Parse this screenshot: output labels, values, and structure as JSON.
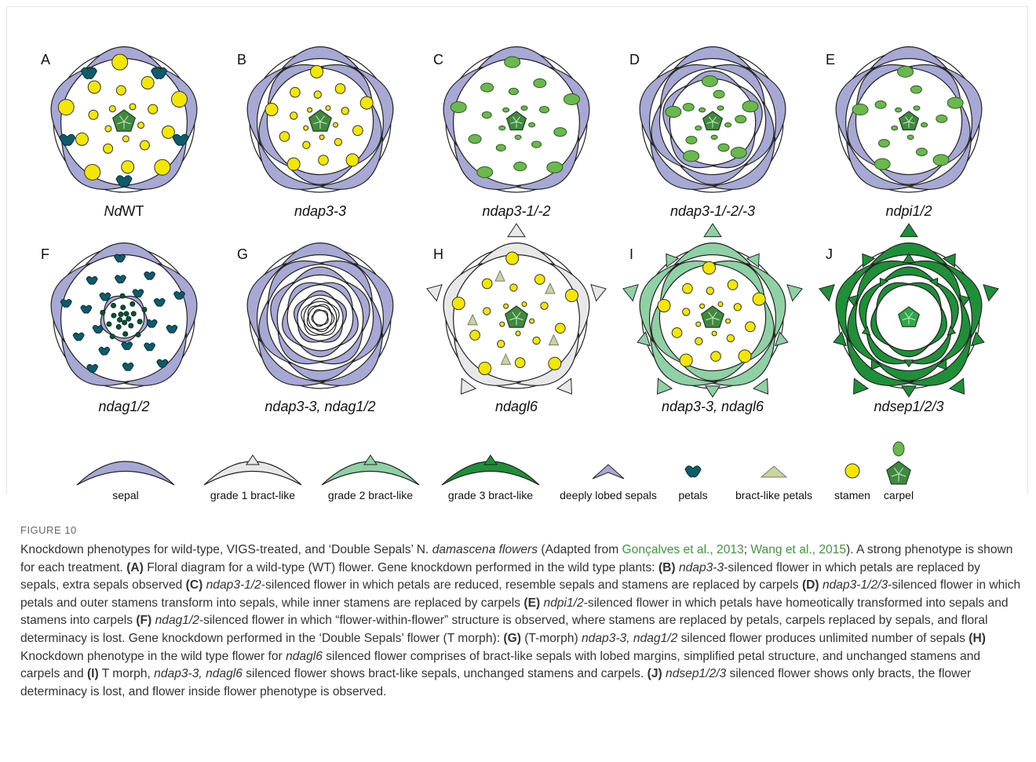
{
  "figure": {
    "panels": [
      {
        "letter": "A",
        "label": [
          {
            "text": "Nd",
            "style": "italic"
          },
          {
            "text": "WT",
            "style": "normal"
          }
        ]
      },
      {
        "letter": "B",
        "label": [
          {
            "text": "ndap3-3",
            "style": "italic"
          }
        ]
      },
      {
        "letter": "C",
        "label": [
          {
            "text": "ndap3-1/-2",
            "style": "italic"
          }
        ]
      },
      {
        "letter": "D",
        "label": [
          {
            "text": "ndap3-1/-2/-3",
            "style": "italic"
          }
        ]
      },
      {
        "letter": "E",
        "label": [
          {
            "text": "ndpi1/2",
            "style": "italic"
          }
        ]
      },
      {
        "letter": "F",
        "label": [
          {
            "text": "ndag1/2",
            "style": "italic"
          }
        ]
      },
      {
        "letter": "G",
        "label": [
          {
            "text": "ndap3-3, ndag1/2",
            "style": "italic"
          }
        ]
      },
      {
        "letter": "H",
        "label": [
          {
            "text": "ndagl6",
            "style": "italic"
          }
        ]
      },
      {
        "letter": "I",
        "label": [
          {
            "text": "ndap3-3, ndagl6",
            "style": "italic"
          }
        ]
      },
      {
        "letter": "J",
        "label": [
          {
            "text": "ndsep1/2/3",
            "style": "italic"
          }
        ]
      }
    ],
    "legend": [
      "sepal",
      "grade 1 bract-like",
      "grade 2 bract-like",
      "grade 3 bract-like",
      "deeply lobed sepals",
      "petals",
      "bract-like petals",
      "stamen",
      "carpel"
    ],
    "label": "FIGURE 10",
    "caption": [
      {
        "text": "Knockdown phenotypes for wild-type, VIGS-treated, and ‘Double Sepals’ N. ",
        "style": "normal"
      },
      {
        "text": "damascena flowers",
        "style": "italic"
      },
      {
        "text": " (Adapted from ",
        "style": "normal"
      },
      {
        "text": "Gonçalves et al., 2013",
        "style": "link"
      },
      {
        "text": "; ",
        "style": "normal"
      },
      {
        "text": "Wang et al., 2015",
        "style": "link"
      },
      {
        "text": "). A strong phenotype is shown for each treatment. ",
        "style": "normal"
      },
      {
        "text": "(A)",
        "style": "bold"
      },
      {
        "text": " Floral diagram for a wild-type (WT) flower. Gene knockdown performed in the wild type plants: ",
        "style": "normal"
      },
      {
        "text": "(B) ",
        "style": "bold"
      },
      {
        "text": "ndap3-3",
        "style": "italic"
      },
      {
        "text": "-silenced flower in which petals are replaced by sepals, extra sepals observed ",
        "style": "normal"
      },
      {
        "text": "(C) ",
        "style": "bold"
      },
      {
        "text": "ndap3-1/2",
        "style": "italic"
      },
      {
        "text": "-silenced flower in which petals are reduced, resemble sepals and stamens are replaced by carpels ",
        "style": "normal"
      },
      {
        "text": "(D) ",
        "style": "bold"
      },
      {
        "text": "ndap3-1/2/3",
        "style": "italic"
      },
      {
        "text": "-silenced flower in which petals and outer stamens transform into sepals, while inner stamens are replaced by carpels ",
        "style": "normal"
      },
      {
        "text": "(E) ",
        "style": "bold"
      },
      {
        "text": "ndpi1/2",
        "style": "italic"
      },
      {
        "text": "-silenced flower in which petals have homeotically transformed into sepals and stamens into carpels ",
        "style": "normal"
      },
      {
        "text": "(F) ",
        "style": "bold"
      },
      {
        "text": "ndag1/2",
        "style": "italic"
      },
      {
        "text": "-silenced flower in which “flower-within-flower” structure is observed, where stamens are replaced by petals, carpels replaced by sepals, and floral determinacy is lost. Gene knockdown performed in the ‘Double Sepals’ flower (T morph): ",
        "style": "normal"
      },
      {
        "text": "(G)",
        "style": "bold"
      },
      {
        "text": " (T-morph) ",
        "style": "normal"
      },
      {
        "text": "ndap3-3, ndag1/2",
        "style": "italic"
      },
      {
        "text": " silenced flower produces unlimited number of sepals ",
        "style": "normal"
      },
      {
        "text": "(H)",
        "style": "bold"
      },
      {
        "text": " Knockdown phenotype in the wild type flower for ",
        "style": "normal"
      },
      {
        "text": "ndagl6",
        "style": "italic"
      },
      {
        "text": " silenced flower comprises of bract-like sepals with lobed margins, simplified petal structure, and unchanged stamens and carpels and ",
        "style": "normal"
      },
      {
        "text": "(I)",
        "style": "bold"
      },
      {
        "text": " T morph, ",
        "style": "normal"
      },
      {
        "text": "ndap3-3, ndagl6",
        "style": "italic"
      },
      {
        "text": " silenced flower shows bract-like sepals, unchanged stamens and carpels. ",
        "style": "normal"
      },
      {
        "text": "(J) ",
        "style": "bold"
      },
      {
        "text": "ndsep1/2/3",
        "style": "italic"
      },
      {
        "text": " silenced flower shows only bracts, the flower determinacy is lost, and flower inside flower phenotype is observed.",
        "style": "normal"
      }
    ]
  }
}
